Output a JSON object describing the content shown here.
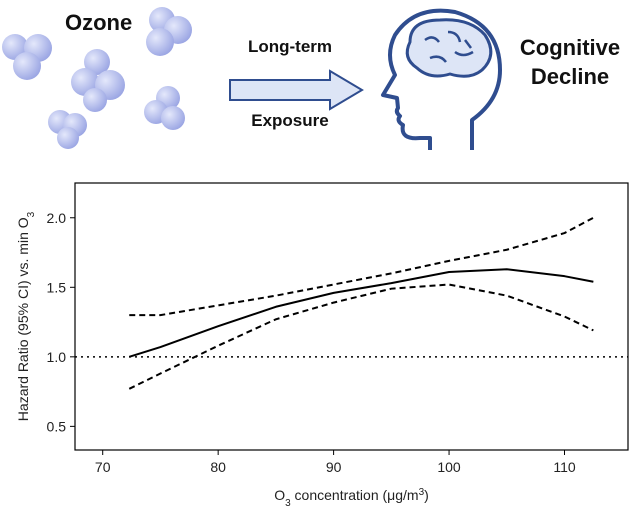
{
  "illustration": {
    "left_label": "Ozone",
    "arrow_top": "Long-term",
    "arrow_bottom": "Exposure",
    "right_label_lines": [
      "Cognitive",
      "Decline"
    ]
  },
  "chart_data": {
    "type": "line",
    "ylabel": [
      {
        "text": "Hazard Ratio (95% CI) vs. min O"
      },
      {
        "text": "3",
        "shift": "sub"
      }
    ],
    "xlabel": [
      {
        "text": "O"
      },
      {
        "text": "3",
        "shift": "sub"
      },
      {
        "text": " concentration (μg/m"
      },
      {
        "text": "3",
        "shift": "super"
      },
      {
        "text": ")"
      }
    ],
    "x": [
      72.3,
      75,
      80,
      85,
      90,
      95,
      100,
      105,
      110,
      112.5
    ],
    "series": [
      {
        "color": "#000000",
        "dash": "solid",
        "values": [
          1.0,
          1.07,
          1.22,
          1.36,
          1.46,
          1.53,
          1.61,
          1.63,
          1.58,
          1.54
        ]
      },
      {
        "color": "#000000",
        "dash": "dashed",
        "values": [
          1.3,
          1.3,
          1.37,
          1.44,
          1.52,
          1.6,
          1.69,
          1.77,
          1.89,
          2.0
        ]
      },
      {
        "color": "#000000",
        "dash": "dashed",
        "values": [
          0.77,
          0.88,
          1.08,
          1.27,
          1.39,
          1.49,
          1.52,
          1.44,
          1.29,
          1.19
        ]
      }
    ],
    "reference_line": 1.0,
    "xlim": [
      67.6,
      115.5
    ],
    "ylim": [
      0.33,
      2.25
    ],
    "xticks": [
      70,
      80,
      90,
      100,
      110
    ],
    "yticks": [
      {
        "value": 0.5,
        "label": "0.5"
      },
      {
        "value": 1.0,
        "label": "1.0"
      },
      {
        "value": 1.5,
        "label": "1.5"
      },
      {
        "value": 2.0,
        "label": "2.0"
      }
    ],
    "grid": false
  }
}
